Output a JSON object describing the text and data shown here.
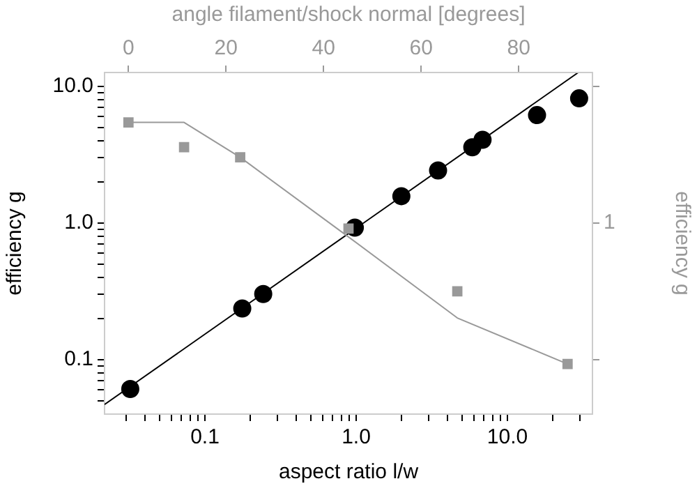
{
  "chart_data": [
    {
      "type": "scatter",
      "xlabel": "aspect ratio l/w",
      "ylabel": "efficiency g",
      "log": "xy",
      "grid": false,
      "legend": false,
      "xlim": [
        0.0217,
        36.5
      ],
      "ylim": [
        0.04,
        12.6
      ],
      "xticks": [
        {
          "value": 0.03,
          "label": null
        },
        {
          "value": 0.04,
          "label": null
        },
        {
          "value": 0.05,
          "label": null
        },
        {
          "value": 0.06,
          "label": null
        },
        {
          "value": 0.07,
          "label": null
        },
        {
          "value": 0.08,
          "label": null
        },
        {
          "value": 0.09,
          "label": null
        },
        {
          "value": 0.1,
          "label": "0.1"
        },
        {
          "value": 0.2,
          "label": null
        },
        {
          "value": 0.3,
          "label": null
        },
        {
          "value": 0.4,
          "label": null
        },
        {
          "value": 0.5,
          "label": null
        },
        {
          "value": 0.6,
          "label": null
        },
        {
          "value": 0.7,
          "label": null
        },
        {
          "value": 0.8,
          "label": null
        },
        {
          "value": 0.9,
          "label": null
        },
        {
          "value": 1,
          "label": "1.0"
        },
        {
          "value": 2,
          "label": null
        },
        {
          "value": 3,
          "label": null
        },
        {
          "value": 4,
          "label": null
        },
        {
          "value": 5,
          "label": null
        },
        {
          "value": 6,
          "label": null
        },
        {
          "value": 7,
          "label": null
        },
        {
          "value": 8,
          "label": null
        },
        {
          "value": 9,
          "label": null
        },
        {
          "value": 10,
          "label": "10.0"
        },
        {
          "value": 20,
          "label": null
        },
        {
          "value": 30,
          "label": null
        }
      ],
      "yticks": [
        {
          "value": 0.05,
          "label": null
        },
        {
          "value": 0.06,
          "label": null
        },
        {
          "value": 0.07,
          "label": null
        },
        {
          "value": 0.08,
          "label": null
        },
        {
          "value": 0.09,
          "label": null
        },
        {
          "value": 0.1,
          "label": "0.1"
        },
        {
          "value": 0.2,
          "label": null
        },
        {
          "value": 0.3,
          "label": null
        },
        {
          "value": 0.4,
          "label": null
        },
        {
          "value": 0.5,
          "label": null
        },
        {
          "value": 0.6,
          "label": null
        },
        {
          "value": 0.7,
          "label": null
        },
        {
          "value": 0.8,
          "label": null
        },
        {
          "value": 0.9,
          "label": null
        },
        {
          "value": 1,
          "label": "1.0"
        },
        {
          "value": 2,
          "label": null
        },
        {
          "value": 3,
          "label": null
        },
        {
          "value": 4,
          "label": null
        },
        {
          "value": 5,
          "label": null
        },
        {
          "value": 6,
          "label": null
        },
        {
          "value": 7,
          "label": null
        },
        {
          "value": 8,
          "label": null
        },
        {
          "value": 9,
          "label": null
        },
        {
          "value": 10,
          "label": "10.0"
        }
      ],
      "series": [
        {
          "marker": "circle",
          "color": "#000000",
          "x": [
            0.0321,
            0.1766,
            0.243,
            0.98,
            1.99,
            3.48,
            5.86,
            6.85,
            15.7,
            29.8
          ],
          "values": [
            0.061,
            0.237,
            0.302,
            0.925,
            1.57,
            2.42,
            3.58,
            4.06,
            6.15,
            8.15
          ]
        },
        {
          "type": "line",
          "marker": "none",
          "color": "#000000",
          "x": [
            0.0217,
            29.4
          ],
          "values": [
            0.047,
            12.6
          ]
        }
      ]
    },
    {
      "type": "scatter",
      "xlabel": "angle filament/shock normal [degrees]",
      "ylabel": "efficiency g",
      "log": "y",
      "grid": false,
      "legend": false,
      "tick_labels": "x",
      "xlim": [
        -4.9,
        95.1
      ],
      "ylim": [
        0.04,
        12.6
      ],
      "xticks": [
        0,
        20,
        40,
        60,
        80
      ],
      "yticks": [
        {
          "value": 0.1,
          "label": null
        },
        {
          "value": 1,
          "label": null
        },
        {
          "value": 10,
          "label": null
        }
      ],
      "annotations": [
        "1"
      ],
      "series": [
        {
          "marker": "square",
          "color": "#999999",
          "x": [
            0,
            11.4,
            22.9,
            45.1,
            67.4,
            90
          ],
          "values": [
            5.44,
            3.58,
            3.02,
            0.91,
            0.316,
            0.093
          ]
        },
        {
          "type": "line",
          "marker": "none",
          "color": "#999999",
          "x": [
            0,
            11.4,
            22.9,
            45.1,
            67.4,
            90
          ],
          "values": [
            5.44,
            5.44,
            3.02,
            0.79,
            0.202,
            0.093
          ]
        }
      ]
    }
  ]
}
